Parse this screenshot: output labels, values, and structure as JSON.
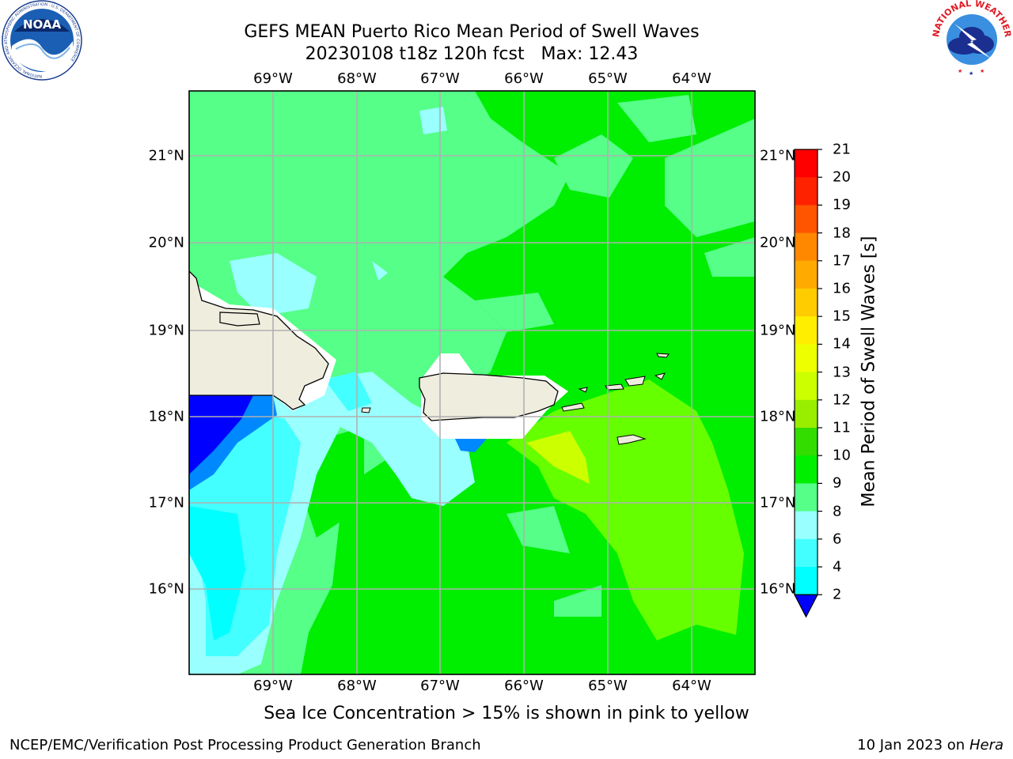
{
  "header": {
    "title_line1": "GEFS MEAN Puerto Rico Mean Period of Swell Waves",
    "title_line2": "20230108 t18z 120h fcst   Max: 12.43"
  },
  "map": {
    "lon_ticks": [
      "69°W",
      "68°W",
      "67°W",
      "66°W",
      "65°W",
      "64°W"
    ],
    "lat_ticks": [
      "21°N",
      "20°N",
      "19°N",
      "18°N",
      "17°N",
      "16°N"
    ],
    "colors": {
      "ocean_light_green": "#55ff88",
      "ocean_green": "#00ee00",
      "ocean_lime": "#66ff00",
      "ocean_yellow_green": "#ccff00",
      "ocean_cyan": "#00ffff",
      "ocean_pale_cyan": "#99ffff",
      "ocean_blue": "#0000ff",
      "land": "#efedde",
      "grid": "#b0b0b0"
    }
  },
  "colorbar": {
    "labels": [
      "21",
      "20",
      "19",
      "18",
      "17",
      "16",
      "15",
      "14",
      "13",
      "12",
      "11",
      "10",
      "9",
      "8",
      "6",
      "4",
      "2"
    ],
    "colors": [
      "#ff0000",
      "#ff2200",
      "#ff5500",
      "#ff8800",
      "#ffaa00",
      "#ffcc00",
      "#ffee00",
      "#eeff00",
      "#ccff00",
      "#99ee00",
      "#33dd00",
      "#00ee00",
      "#55ff88",
      "#99ffff",
      "#44ffff",
      "#00ffff",
      "#0088ff",
      "#0000ff"
    ],
    "title": "Mean Period of Swell Waves [s]"
  },
  "subtitle": "Sea Ice Concentration > 15% is shown in pink to yellow",
  "footer": {
    "left": "NCEP/EMC/Verification Post Processing Product Generation Branch",
    "right_date": "10 Jan 2023 on",
    "right_host": "Hera"
  },
  "logos": {
    "noaa_text": "NOAA",
    "noaa_ring": "NATIONAL OCEANIC AND ATMOSPHERIC ADMINISTRATION · U.S. DEPARTMENT OF COMMERCE",
    "nws_ring": "NATIONAL WEATHER SERVICE"
  }
}
